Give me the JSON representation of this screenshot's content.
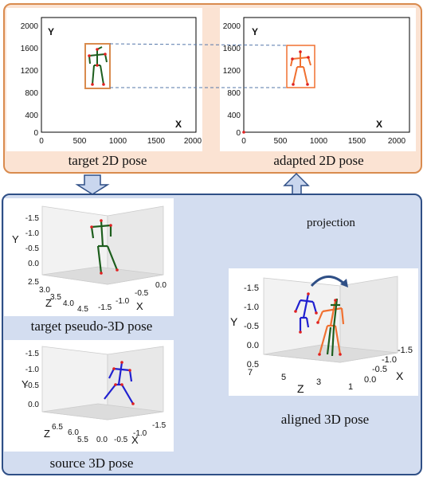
{
  "top": {
    "plot_left": {
      "x_ticks": [
        "0",
        "500",
        "1000",
        "1500",
        "2000"
      ],
      "y_ticks": [
        "2000",
        "1600",
        "1200",
        "800",
        "400",
        "0"
      ],
      "x_label": "X",
      "y_label": "Y",
      "caption": "target 2D pose"
    },
    "plot_right": {
      "x_ticks": [
        "0",
        "500",
        "1000",
        "1500",
        "2000"
      ],
      "y_ticks": [
        "2000",
        "1600",
        "1200",
        "800",
        "400",
        "0"
      ],
      "x_label": "X",
      "y_label": "Y",
      "caption": "adapted 2D pose"
    }
  },
  "bottom": {
    "target3d": {
      "y_ticks": [
        "-1.5",
        "-1.0",
        "-0.5",
        "0.0"
      ],
      "z_ticks": [
        "2.5",
        "3.0",
        "3.5",
        "4.0",
        "4.5"
      ],
      "x_ticks": [
        "-1.5",
        "-1.0",
        "-0.5",
        "0.0"
      ],
      "y_label": "Y",
      "z_label": "Z",
      "x_label": "X",
      "caption": "target pseudo-3D pose"
    },
    "source3d": {
      "y_ticks": [
        "-1.5",
        "-1.0",
        "-0.5",
        "0.0"
      ],
      "z_ticks": [
        "6.5",
        "6.0",
        "5.5"
      ],
      "x_ticks": [
        "0.0",
        "-0.5",
        "-1.0",
        "-1.5"
      ],
      "y_label": "Y",
      "z_label": "Z",
      "x_label": "X",
      "caption": "source 3D pose"
    },
    "aligned3d": {
      "y_ticks": [
        "-1.5",
        "-1.0",
        "-0.5",
        "0.0",
        "0.5"
      ],
      "z_ticks": [
        "7",
        "5",
        "3",
        "1"
      ],
      "x_ticks": [
        "-1.5",
        "-1.0",
        "-0.5",
        "0.0"
      ],
      "y_label": "Y",
      "z_label": "Z",
      "x_label": "X",
      "caption": "aligned 3D pose"
    },
    "projection_label": "projection"
  },
  "colors": {
    "top_panel_bg": "#fbe3d3",
    "top_panel_border": "#d98b4e",
    "bottom_panel_bg": "#d3ddf0",
    "bottom_panel_border": "#2f4f86",
    "target_skeleton": "#1d5e1d",
    "adapted_skeleton": "#f07030",
    "source_skeleton": "#2020d0",
    "joint_red": "#e02020",
    "arrow_fill": "#c9d6ee"
  }
}
